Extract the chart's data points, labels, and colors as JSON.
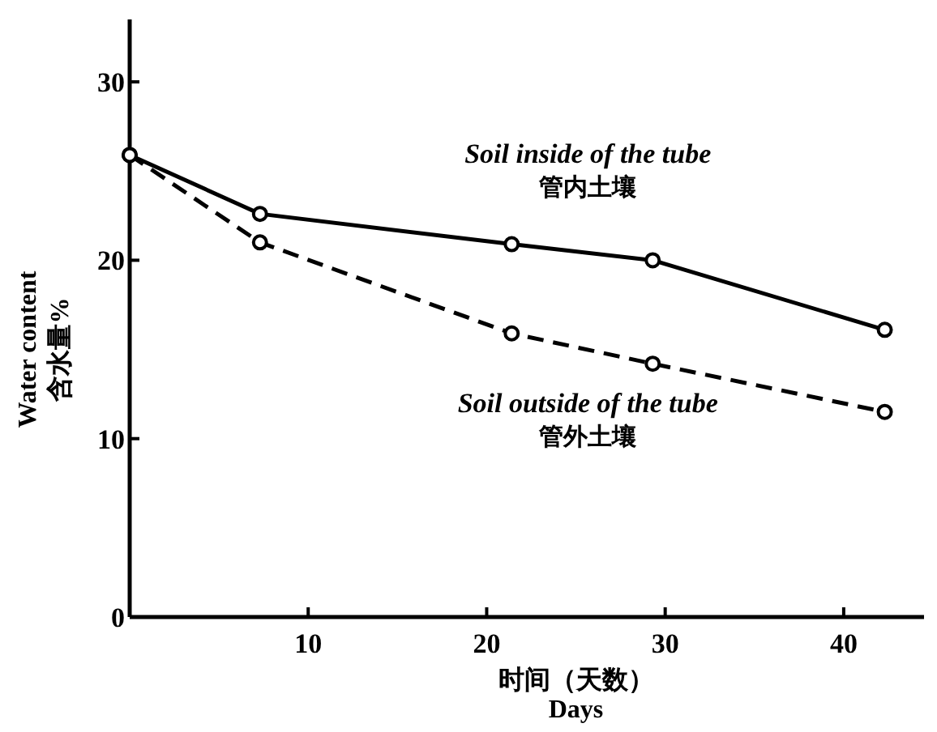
{
  "chart_data": {
    "type": "line",
    "xlabel": "时间（天数）\nDays",
    "ylabel": "Water content\n含水量%",
    "xlim": [
      0,
      44.5
    ],
    "ylim": [
      0,
      33.5
    ],
    "xticks": [
      10,
      20,
      30,
      40
    ],
    "yticks": [
      0,
      10,
      20,
      30
    ],
    "grid": false,
    "marker": "circle",
    "series": [
      {
        "name": "Soil inside of the tube\n管内土壤",
        "color": "#000000",
        "line_style": "solid",
        "x": [
          0,
          7.3,
          21.4,
          29.3,
          42.3
        ],
        "values": [
          25.9,
          22.6,
          20.9,
          20.0,
          16.1
        ]
      },
      {
        "name": "Soil outside of the tube\n管外土壤",
        "color": "#000000",
        "line_style": "dashed",
        "x": [
          0,
          7.3,
          21.4,
          29.3,
          42.3
        ],
        "values": [
          25.9,
          21.0,
          15.9,
          14.2,
          11.5
        ]
      }
    ]
  }
}
